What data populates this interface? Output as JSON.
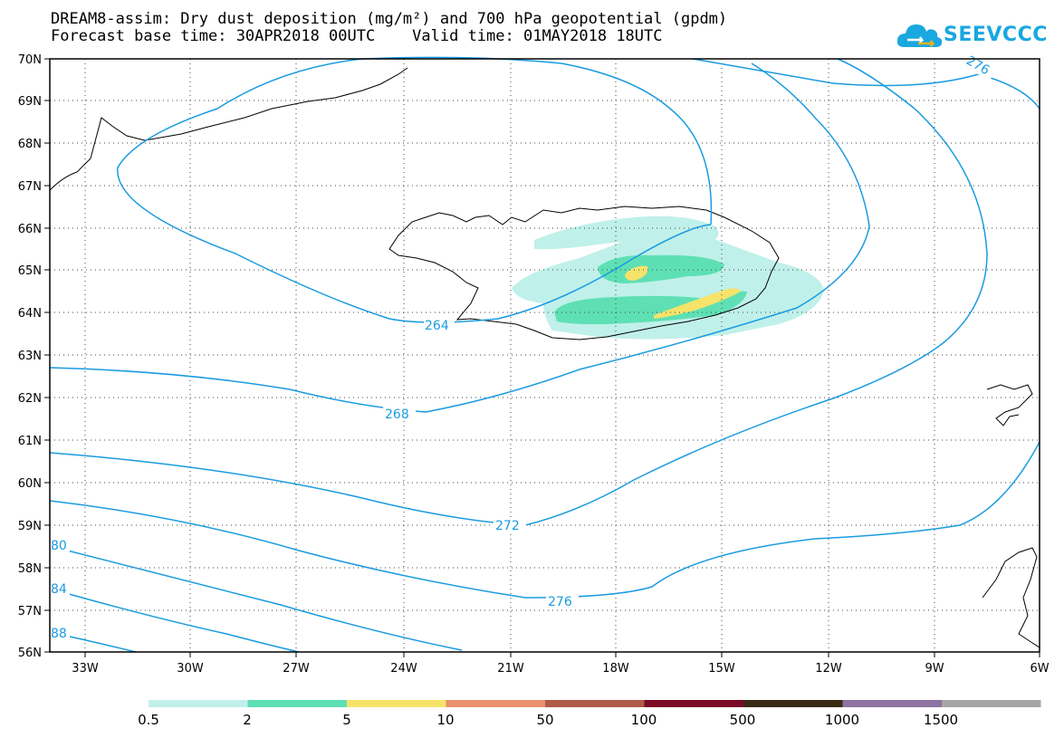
{
  "title_line1": "DREAM8-assim: Dry dust deposition (mg/m²) and 700 hPa geopotential (gpdm)",
  "title_line2": "Forecast base time: 30APR2018 00UTC    Valid time: 01MAY2018 18UTC",
  "logo": {
    "text": "SEEVCCC",
    "icon": "cloud-logo-icon",
    "color": "#19a8e0"
  },
  "map": {
    "lon_range": [
      -34,
      -6
    ],
    "lat_range": [
      56,
      70
    ],
    "lat_labels": [
      "70N",
      "69N",
      "68N",
      "67N",
      "66N",
      "65N",
      "64N",
      "63N",
      "62N",
      "61N",
      "60N",
      "59N",
      "58N",
      "57N",
      "56N"
    ],
    "lon_labels": [
      "33W",
      "30W",
      "27W",
      "24W",
      "21W",
      "18W",
      "15W",
      "12W",
      "9W",
      "6W"
    ],
    "contour_color": "#1a9be0",
    "contour_labels": [
      "264",
      "268",
      "272",
      "276",
      "276",
      "80",
      "84",
      "88"
    ]
  },
  "legend": {
    "colors": [
      "#c0f0ea",
      "#5ee0b4",
      "#f5e36a",
      "#e89070",
      "#b05a48",
      "#7a0a25",
      "#3a2a15",
      "#8e72a0",
      "#a6a6a6"
    ],
    "labels": [
      "0.5",
      "2",
      "5",
      "10",
      "50",
      "100",
      "500",
      "1000",
      "1500"
    ]
  }
}
